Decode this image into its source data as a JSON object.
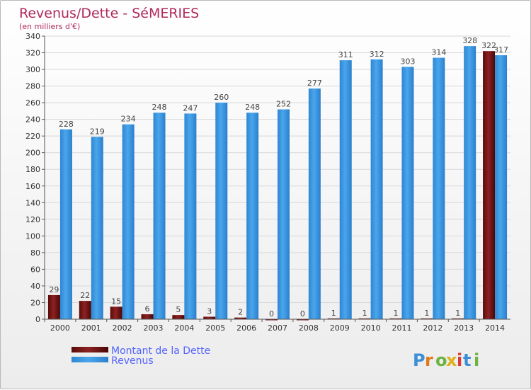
{
  "chart_data": {
    "type": "bar",
    "title": "Revenus/Dette - SéMERIES",
    "subtitle": "(en milliers d'€)",
    "categories": [
      "2000",
      "2001",
      "2002",
      "2003",
      "2004",
      "2005",
      "2006",
      "2007",
      "2008",
      "2009",
      "2010",
      "2011",
      "2012",
      "2013",
      "2014"
    ],
    "series": [
      {
        "name": "Montant de la Dette",
        "color": "#7a1414",
        "values": [
          29,
          22,
          15,
          6,
          5,
          3,
          2,
          0,
          0,
          1,
          1,
          1,
          1,
          1,
          322
        ]
      },
      {
        "name": "Revenus",
        "color": "#3d9be5",
        "values": [
          228,
          219,
          234,
          248,
          247,
          260,
          248,
          252,
          277,
          311,
          312,
          303,
          314,
          328,
          317
        ]
      }
    ],
    "ylim": [
      0,
      340
    ],
    "yticks": [
      0,
      20,
      40,
      60,
      80,
      100,
      120,
      140,
      160,
      180,
      200,
      220,
      240,
      260,
      280,
      300,
      320,
      340
    ],
    "grid": true,
    "legend": "bottom-left"
  },
  "logo": {
    "text": "Proxiti"
  }
}
